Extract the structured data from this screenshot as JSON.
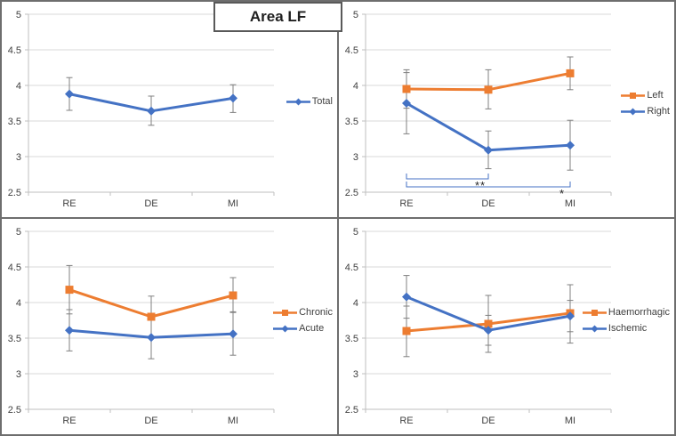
{
  "figure": {
    "title": "Area LF"
  },
  "colors": {
    "orange": "#ED7D31",
    "blue": "#4472C4",
    "gridline": "#D9D9D9",
    "axis": "#BFBFBF",
    "error_bar": "#808080",
    "bracket": "#4472C4",
    "tick_text": "#404040",
    "asterisk": "#262626"
  },
  "chart_data": [
    {
      "type": "line",
      "panel": "top-left",
      "title": "",
      "xlabel": "",
      "ylabel": "",
      "categories": [
        "RE",
        "DE",
        "MI"
      ],
      "ylim": [
        2.5,
        5
      ],
      "yticks": [
        5,
        4.5,
        4,
        3.5,
        3,
        2.5
      ],
      "grid": true,
      "legend_position": "right",
      "series": [
        {
          "name": "Total",
          "color": "#4472C4",
          "marker": "diamond",
          "values": [
            3.88,
            3.64,
            3.82
          ],
          "err_lo": [
            3.65,
            3.44,
            3.62
          ],
          "err_hi": [
            4.11,
            3.85,
            4.01
          ]
        }
      ],
      "significance": []
    },
    {
      "type": "line",
      "panel": "top-right",
      "title": "",
      "xlabel": "",
      "ylabel": "",
      "categories": [
        "RE",
        "DE",
        "MI"
      ],
      "ylim": [
        2.5,
        5
      ],
      "yticks": [
        5,
        4.5,
        4,
        3.5,
        3,
        2.5
      ],
      "grid": true,
      "legend_position": "right",
      "series": [
        {
          "name": "Left",
          "color": "#ED7D31",
          "marker": "square",
          "values": [
            3.95,
            3.94,
            4.17
          ],
          "err_lo": [
            3.68,
            3.67,
            3.94
          ],
          "err_hi": [
            4.22,
            4.22,
            4.4
          ]
        },
        {
          "name": "Right",
          "color": "#4472C4",
          "marker": "diamond",
          "values": [
            3.75,
            3.09,
            3.16
          ],
          "err_lo": [
            3.32,
            2.83,
            2.81
          ],
          "err_hi": [
            4.18,
            3.36,
            3.51
          ]
        }
      ],
      "significance": [
        {
          "from": 0,
          "to": 1,
          "label": "**"
        },
        {
          "from": 0,
          "to": 2,
          "label": "*"
        }
      ]
    },
    {
      "type": "line",
      "panel": "bottom-left",
      "title": "",
      "xlabel": "",
      "ylabel": "",
      "categories": [
        "RE",
        "DE",
        "MI"
      ],
      "ylim": [
        2.5,
        5
      ],
      "yticks": [
        5,
        4.5,
        4,
        3.5,
        3,
        2.5
      ],
      "grid": true,
      "legend_position": "right",
      "series": [
        {
          "name": "Chronic",
          "color": "#ED7D31",
          "marker": "square",
          "values": [
            4.18,
            3.8,
            4.1
          ],
          "err_lo": [
            3.84,
            3.52,
            3.86
          ],
          "err_hi": [
            4.52,
            4.09,
            4.35
          ]
        },
        {
          "name": "Acute",
          "color": "#4472C4",
          "marker": "diamond",
          "values": [
            3.61,
            3.51,
            3.56
          ],
          "err_lo": [
            3.32,
            3.21,
            3.26
          ],
          "err_hi": [
            3.9,
            3.81,
            3.87
          ]
        }
      ],
      "significance": []
    },
    {
      "type": "line",
      "panel": "bottom-right",
      "title": "",
      "xlabel": "",
      "ylabel": "",
      "categories": [
        "RE",
        "DE",
        "MI"
      ],
      "ylim": [
        2.5,
        5
      ],
      "yticks": [
        5,
        4.5,
        4,
        3.5,
        3,
        2.5
      ],
      "grid": true,
      "legend_position": "right",
      "series": [
        {
          "name": "Haemorrhagic",
          "color": "#ED7D31",
          "marker": "square",
          "values": [
            3.6,
            3.7,
            3.85
          ],
          "err_lo": [
            3.24,
            3.3,
            3.43
          ],
          "err_hi": [
            3.95,
            4.1,
            4.25
          ]
        },
        {
          "name": "Ischemic",
          "color": "#4472C4",
          "marker": "diamond",
          "values": [
            4.08,
            3.61,
            3.81
          ],
          "err_lo": [
            3.78,
            3.4,
            3.59
          ],
          "err_hi": [
            4.38,
            3.82,
            4.03
          ]
        }
      ],
      "significance": []
    }
  ]
}
